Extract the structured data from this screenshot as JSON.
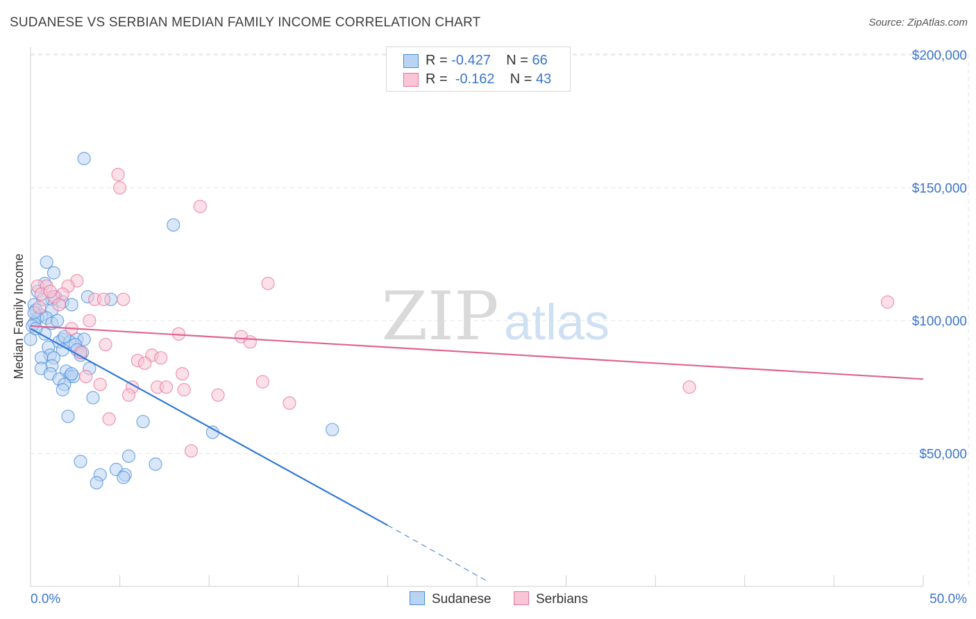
{
  "title": "SUDANESE VS SERBIAN MEDIAN FAMILY INCOME CORRELATION CHART",
  "source": "Source: ZipAtlas.com",
  "watermark": {
    "zip": "ZIP",
    "atlas": "atlas"
  },
  "legend": {
    "sudanese": {
      "r_label": "R =",
      "r_value": "-0.427",
      "n_label": "N =",
      "n_value": "66"
    },
    "serbians": {
      "r_label": "R =",
      "r_value": "-0.162",
      "n_label": "N =",
      "n_value": "43"
    }
  },
  "chart_data": {
    "type": "scatter",
    "title": "SUDANESE VS SERBIAN MEDIAN FAMILY INCOME CORRELATION CHART",
    "xlabel": "",
    "ylabel": "Median Family Income",
    "xlim": [
      0,
      50
    ],
    "ylim": [
      0,
      205000
    ],
    "x_tick_labels": [
      "0.0%",
      "50.0%"
    ],
    "y_ticks": [
      50000,
      100000,
      150000,
      200000
    ],
    "y_tick_labels": [
      "$50,000",
      "$100,000",
      "$150,000",
      "$200,000"
    ],
    "colors": {
      "sudanese": "#4a8ddb",
      "sudanese_fill": "#b9d3f3",
      "serbians": "#e8739c",
      "serbians_fill": "#f8c6d6"
    },
    "series": [
      {
        "name": "Sudanese",
        "trend": {
          "x0": 0,
          "y0": 97000,
          "x1": 20,
          "y1": 23000,
          "dash_x1": 25.7,
          "dash_y1": 1500
        },
        "points": [
          [
            3.0,
            161000
          ],
          [
            8.0,
            136000
          ],
          [
            0.9,
            122000
          ],
          [
            1.3,
            118000
          ],
          [
            0.8,
            114000
          ],
          [
            0.4,
            111000
          ],
          [
            1.4,
            109000
          ],
          [
            1.2,
            108000
          ],
          [
            1.8,
            107000
          ],
          [
            0.2,
            106000
          ],
          [
            2.3,
            106000
          ],
          [
            3.2,
            109000
          ],
          [
            4.5,
            108000
          ],
          [
            0.3,
            104000
          ],
          [
            1.2,
            104000
          ],
          [
            0.6,
            102000
          ],
          [
            0.4,
            101000
          ],
          [
            0.9,
            101000
          ],
          [
            0.2,
            99000
          ],
          [
            1.2,
            99000
          ],
          [
            0.1,
            98000
          ],
          [
            0.8,
            95000
          ],
          [
            1.8,
            93000
          ],
          [
            2.6,
            93000
          ],
          [
            3.0,
            93000
          ],
          [
            1.6,
            92000
          ],
          [
            2.2,
            92000
          ],
          [
            2.5,
            91000
          ],
          [
            1.0,
            90000
          ],
          [
            1.8,
            89000
          ],
          [
            2.6,
            89000
          ],
          [
            1.1,
            87000
          ],
          [
            1.3,
            86000
          ],
          [
            0.6,
            86000
          ],
          [
            2.8,
            87000
          ],
          [
            1.2,
            83000
          ],
          [
            2.0,
            81000
          ],
          [
            3.3,
            82000
          ],
          [
            0.6,
            82000
          ],
          [
            1.1,
            80000
          ],
          [
            2.2,
            79000
          ],
          [
            2.4,
            79000
          ],
          [
            1.6,
            78000
          ],
          [
            1.9,
            76000
          ],
          [
            1.8,
            74000
          ],
          [
            3.5,
            71000
          ],
          [
            2.1,
            64000
          ],
          [
            6.3,
            62000
          ],
          [
            16.9,
            59000
          ],
          [
            10.2,
            58000
          ],
          [
            5.5,
            49000
          ],
          [
            2.8,
            47000
          ],
          [
            7.0,
            46000
          ],
          [
            4.8,
            44000
          ],
          [
            3.9,
            42000
          ],
          [
            5.3,
            42000
          ],
          [
            5.2,
            41000
          ],
          [
            3.7,
            39000
          ],
          [
            0.0,
            93000
          ],
          [
            0.2,
            103000
          ],
          [
            1.5,
            100000
          ],
          [
            0.7,
            108000
          ],
          [
            2.9,
            88000
          ],
          [
            1.9,
            94000
          ],
          [
            2.3,
            80000
          ],
          [
            0.3,
            97000
          ]
        ]
      },
      {
        "name": "Serbians",
        "trend": {
          "x0": 0,
          "y0": 98000,
          "x1": 50,
          "y1": 78000
        },
        "points": [
          [
            4.9,
            155000
          ],
          [
            5.0,
            150000
          ],
          [
            9.5,
            143000
          ],
          [
            13.3,
            114000
          ],
          [
            48.0,
            107000
          ],
          [
            0.4,
            113000
          ],
          [
            0.9,
            113000
          ],
          [
            2.6,
            115000
          ],
          [
            2.1,
            113000
          ],
          [
            0.6,
            110000
          ],
          [
            1.8,
            110000
          ],
          [
            1.3,
            109000
          ],
          [
            5.2,
            108000
          ],
          [
            3.6,
            108000
          ],
          [
            4.1,
            108000
          ],
          [
            0.5,
            105000
          ],
          [
            3.3,
            100000
          ],
          [
            8.3,
            95000
          ],
          [
            11.8,
            94000
          ],
          [
            12.3,
            92000
          ],
          [
            4.2,
            91000
          ],
          [
            2.8,
            88000
          ],
          [
            6.8,
            87000
          ],
          [
            7.3,
            86000
          ],
          [
            6.0,
            85000
          ],
          [
            6.4,
            84000
          ],
          [
            8.5,
            80000
          ],
          [
            3.1,
            79000
          ],
          [
            13.0,
            77000
          ],
          [
            3.9,
            76000
          ],
          [
            7.1,
            75000
          ],
          [
            7.6,
            75000
          ],
          [
            8.6,
            74000
          ],
          [
            5.7,
            75000
          ],
          [
            36.9,
            75000
          ],
          [
            5.5,
            72000
          ],
          [
            10.5,
            72000
          ],
          [
            14.5,
            69000
          ],
          [
            4.4,
            63000
          ],
          [
            9.0,
            51000
          ],
          [
            1.1,
            111000
          ],
          [
            2.3,
            97000
          ],
          [
            1.6,
            106000
          ]
        ]
      }
    ]
  }
}
